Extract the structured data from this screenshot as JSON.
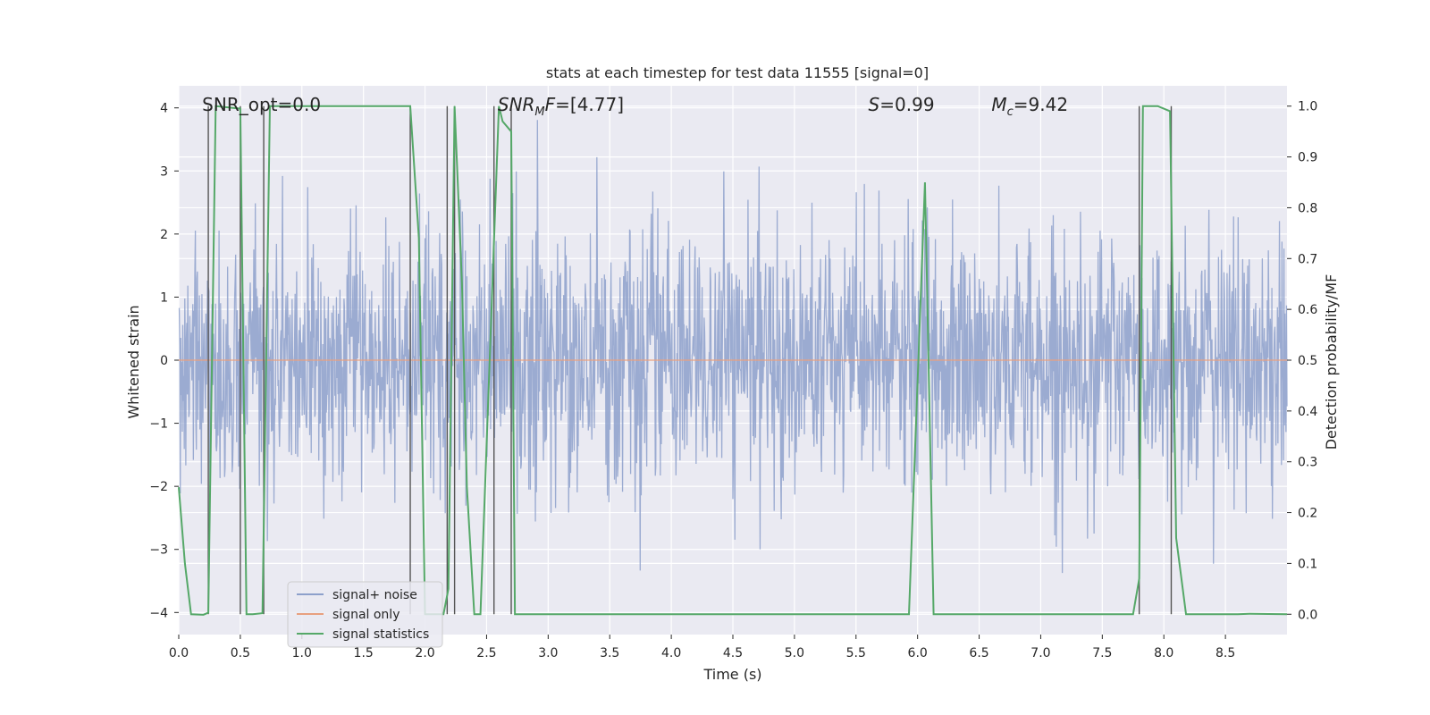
{
  "chart_data": {
    "type": "line",
    "title": "stats at each timestep for test data 11555 [signal=0]",
    "xlabel": "Time (s)",
    "ylabel": "Whitened strain",
    "y2label": "Detection probability/MF",
    "xlim": [
      0,
      9
    ],
    "ylim": [
      -4.35,
      4.35
    ],
    "y2lim": [
      -0.04,
      1.04
    ],
    "x_ticks": [
      0.0,
      0.5,
      1.0,
      1.5,
      2.0,
      2.5,
      3.0,
      3.5,
      4.0,
      4.5,
      5.0,
      5.5,
      6.0,
      6.5,
      7.0,
      7.5,
      8.0,
      8.5
    ],
    "x_tick_labels": [
      "0.0",
      "0.5",
      "1.0",
      "1.5",
      "2.0",
      "2.5",
      "3.0",
      "3.5",
      "4.0",
      "4.5",
      "5.0",
      "5.5",
      "6.0",
      "6.5",
      "7.0",
      "7.5",
      "8.0",
      "8.5"
    ],
    "y_ticks": [
      -4,
      -3,
      -2,
      -1,
      0,
      1,
      2,
      3,
      4
    ],
    "y_tick_labels": [
      "−4",
      "−3",
      "−2",
      "−1",
      "0",
      "1",
      "2",
      "3",
      "4"
    ],
    "y2_ticks": [
      0.0,
      0.1,
      0.2,
      0.3,
      0.4,
      0.5,
      0.6,
      0.7,
      0.8,
      0.9,
      1.0
    ],
    "y2_tick_labels": [
      "0.0",
      "0.1",
      "0.2",
      "0.3",
      "0.4",
      "0.5",
      "0.6",
      "0.7",
      "0.8",
      "0.9",
      "1.0"
    ],
    "annotations": [
      {
        "label": "snr-opt",
        "text": "SNR_opt=0.0",
        "x": 0.19
      },
      {
        "label": "snr-mf",
        "text": "SNR_MF=[4.77]",
        "x": 2.59
      },
      {
        "label": "s-value",
        "text": "S=0.99",
        "x": 5.6
      },
      {
        "label": "mc-value",
        "text": "M_c=9.42",
        "x": 6.6
      }
    ],
    "legend": {
      "position": "lower-left",
      "entries": [
        {
          "label": "signal+ noise",
          "color": "#8da0cb"
        },
        {
          "label": "signal only",
          "color": "#e8a07f"
        },
        {
          "label": "signal statistics",
          "color": "#55a868"
        }
      ]
    },
    "colors": {
      "noise": "#8da0cb",
      "signal": "#e8a07f",
      "statistics": "#55a868",
      "vlines": "#555555",
      "background": "#eaeaf2",
      "grid": "#ffffff"
    },
    "series": [
      {
        "name": "signal+ noise",
        "axis": "left",
        "description": "whitened noise, approx Gaussian with std ~1, sampled densely over 0–9 s",
        "std": 1.0,
        "clip": [
          -3.95,
          3.9
        ]
      },
      {
        "name": "signal only",
        "axis": "left",
        "x": [
          0,
          9
        ],
        "y": [
          0,
          0
        ]
      },
      {
        "name": "signal statistics",
        "axis": "right",
        "x": [
          0.0,
          0.05,
          0.1,
          0.2,
          0.24,
          0.3,
          0.5,
          0.55,
          0.6,
          0.68,
          0.74,
          1.88,
          1.95,
          2.0,
          2.1,
          2.15,
          2.19,
          2.24,
          2.3,
          2.34,
          2.4,
          2.45,
          2.6,
          2.63,
          2.7,
          2.73,
          3.2,
          4.0,
          5.0,
          5.93,
          6.06,
          6.13,
          7.0,
          7.75,
          7.8,
          7.83,
          7.95,
          8.05,
          8.1,
          8.18,
          8.6,
          8.7,
          9.0
        ],
        "y": [
          0.25,
          0.1,
          0.0,
          -0.001,
          0.003,
          1.0,
          0.995,
          0.0,
          0.0,
          0.002,
          1.0,
          1.0,
          0.74,
          0.0,
          0.0,
          0.0,
          0.05,
          1.0,
          0.65,
          0.25,
          0.0,
          0.0,
          1.0,
          0.97,
          0.95,
          0.0,
          0.0,
          0.0,
          0.0,
          0.0,
          0.85,
          0.0,
          0.0,
          0.0,
          0.07,
          1.0,
          1.0,
          0.99,
          0.15,
          0.0,
          0.0,
          0.001,
          0.0
        ]
      }
    ],
    "vertical_lines": [
      0.24,
      0.5,
      0.69,
      1.88,
      2.18,
      2.24,
      2.56,
      2.7,
      7.8,
      8.06
    ]
  }
}
